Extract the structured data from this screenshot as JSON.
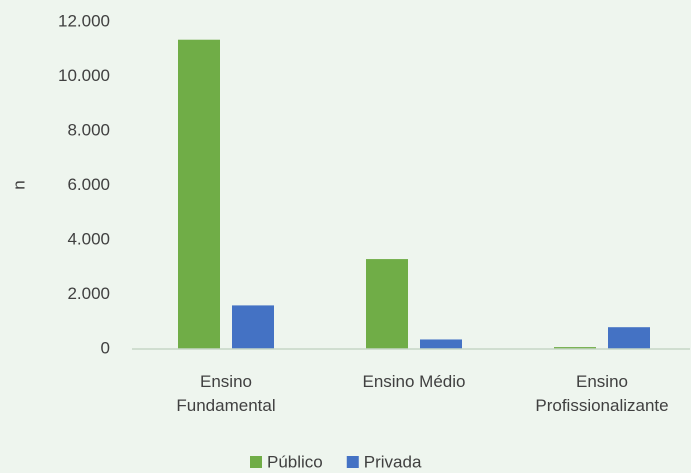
{
  "chart_data": {
    "type": "bar",
    "y_label": "n",
    "categories": [
      "Ensino Fundamental",
      "Ensino Médio",
      "Ensino Profissionalizante"
    ],
    "series": [
      {
        "name": "Público",
        "color": "#70ad47",
        "values": [
          11350,
          3300,
          70
        ]
      },
      {
        "name": "Privada",
        "color": "#4472c4",
        "values": [
          1600,
          350,
          800
        ]
      }
    ],
    "ylim": [
      0,
      12000
    ],
    "yticks": [
      0,
      {
        "value": 2000,
        "label": "2.000"
      },
      {
        "value": 4000,
        "label": "4.000"
      },
      {
        "value": 6000,
        "label": "6.000"
      },
      {
        "value": 8000,
        "label": "8.000"
      },
      {
        "value": 10000,
        "label": "10.000"
      },
      {
        "value": 12000,
        "label": "12.000"
      }
    ],
    "grid": false,
    "legend": "bottom"
  }
}
